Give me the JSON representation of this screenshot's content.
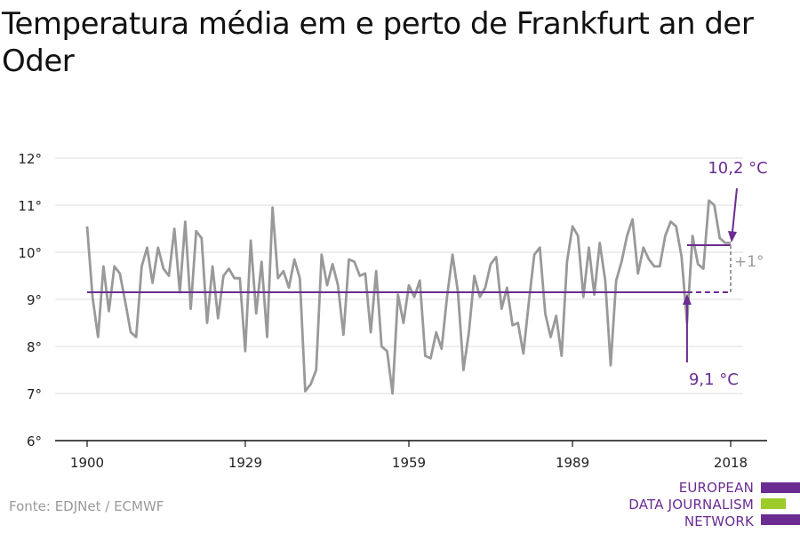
{
  "title": "Temperatura média em e perto de Frankfurt an der Oder",
  "source": "Fonte: EDJNet / ECMWF",
  "logo": {
    "lines": [
      "EUROPEAN",
      "DATA JOURNALISM",
      "NETWORK"
    ],
    "bar_colors": [
      "#6a2c91",
      "#9ccc2a",
      "#6a2c91"
    ]
  },
  "colors": {
    "series": "#999999",
    "accent": "#6a2c91",
    "diff": "#9a9a9a",
    "grid": "#dddddd",
    "axis": "#111111"
  },
  "chart_data": {
    "type": "line",
    "title": "Temperatura média em e perto de Frankfurt an der Oder",
    "xlabel": "",
    "ylabel": "",
    "xlim": [
      1900,
      2018
    ],
    "ylim": [
      6,
      12
    ],
    "x_ticks": [
      1900,
      1929,
      1959,
      1989,
      2018
    ],
    "y_ticks": [
      6,
      7,
      8,
      9,
      10,
      11,
      12
    ],
    "y_tick_labels": [
      "6°",
      "7°",
      "8°",
      "9°",
      "10°",
      "11°",
      "12°"
    ],
    "grid": true,
    "x": [
      1900,
      1901,
      1902,
      1903,
      1904,
      1905,
      1906,
      1907,
      1908,
      1909,
      1910,
      1911,
      1912,
      1913,
      1914,
      1915,
      1916,
      1917,
      1918,
      1919,
      1920,
      1921,
      1922,
      1923,
      1924,
      1925,
      1926,
      1927,
      1928,
      1929,
      1930,
      1931,
      1932,
      1933,
      1934,
      1935,
      1936,
      1937,
      1938,
      1939,
      1940,
      1941,
      1942,
      1943,
      1944,
      1945,
      1946,
      1947,
      1948,
      1949,
      1950,
      1951,
      1952,
      1953,
      1954,
      1955,
      1956,
      1957,
      1958,
      1959,
      1960,
      1961,
      1962,
      1963,
      1964,
      1965,
      1966,
      1967,
      1968,
      1969,
      1970,
      1971,
      1972,
      1973,
      1974,
      1975,
      1976,
      1977,
      1978,
      1979,
      1980,
      1981,
      1982,
      1983,
      1984,
      1985,
      1986,
      1987,
      1988,
      1989,
      1990,
      1991,
      1992,
      1993,
      1994,
      1995,
      1996,
      1997,
      1998,
      1999,
      2000,
      2001,
      2002,
      2003,
      2004,
      2005,
      2006,
      2007,
      2008,
      2009,
      2010,
      2011,
      2012,
      2013,
      2014,
      2015,
      2016,
      2017,
      2018
    ],
    "values": [
      10.55,
      9.05,
      8.2,
      9.7,
      8.75,
      9.7,
      9.55,
      8.95,
      8.3,
      8.2,
      9.7,
      10.1,
      9.35,
      10.1,
      9.65,
      9.5,
      10.5,
      9.15,
      10.65,
      8.8,
      10.45,
      10.3,
      8.5,
      9.7,
      8.6,
      9.5,
      9.65,
      9.45,
      9.45,
      7.9,
      10.25,
      8.7,
      9.8,
      8.2,
      10.95,
      9.45,
      9.6,
      9.25,
      9.85,
      9.45,
      7.05,
      7.2,
      7.5,
      9.95,
      9.3,
      9.75,
      9.3,
      8.25,
      9.85,
      9.8,
      9.5,
      9.55,
      8.3,
      9.6,
      8.0,
      7.9,
      7.0,
      9.1,
      8.5,
      9.3,
      9.05,
      9.4,
      7.8,
      7.75,
      8.3,
      7.95,
      9.05,
      9.95,
      9.15,
      7.5,
      8.3,
      9.5,
      9.05,
      9.25,
      9.75,
      9.9,
      8.8,
      9.25,
      8.45,
      8.5,
      7.85,
      8.95,
      9.95,
      10.1,
      8.7,
      8.2,
      8.65,
      7.8,
      9.8,
      10.55,
      10.35,
      9.05,
      10.1,
      9.1,
      10.2,
      9.4,
      7.6,
      9.4,
      9.8,
      10.35,
      10.7,
      9.55,
      10.1,
      9.85,
      9.7,
      9.7,
      10.35,
      10.65,
      10.55,
      9.9,
      8.5,
      10.35,
      9.75,
      9.65,
      11.1,
      11.0,
      10.3,
      10.2,
      10.2
    ],
    "series": [
      {
        "values_ref": "values"
      }
    ],
    "reference_lines": [
      {
        "label": "9,1 °C",
        "value": 9.15,
        "x_start": 1900,
        "x_end": 2018,
        "solid_until": 2010
      },
      {
        "label": "10,2 °C",
        "value": 10.15,
        "x_start": 2010,
        "x_end": 2018
      }
    ],
    "difference_label": "+1°"
  }
}
